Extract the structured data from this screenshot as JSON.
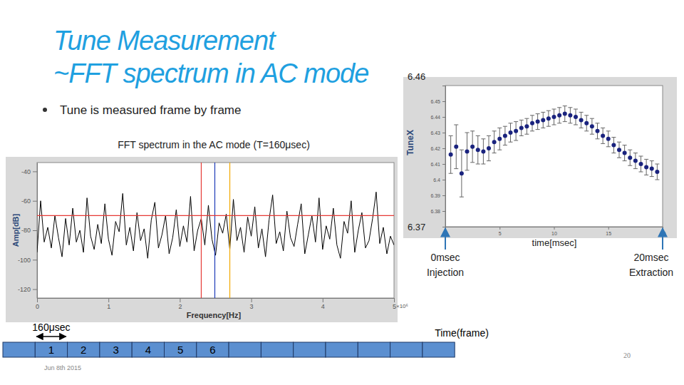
{
  "slide": {
    "title": [
      "Tune Measurement",
      "~FFT spectrum in AC mode"
    ],
    "bullet": "Tune is measured frame by frame",
    "frame_width": "160μsec",
    "frames": [
      1,
      2,
      3,
      4,
      5,
      6
    ],
    "time_axis_label": "Time(frame)",
    "date": "Jun 8th 2015",
    "page": 20
  },
  "chart_data": [
    {
      "type": "line",
      "title": "FFT spectrum in the AC mode (T=160μsec)",
      "x_label": "Frequency[Hz]",
      "y_label": "Amp[dB]",
      "x_exponent_label": "×10⁶",
      "x": [
        0,
        0.05,
        0.1,
        0.15,
        0.2,
        0.25,
        0.3,
        0.35,
        0.4,
        0.45,
        0.5,
        0.55,
        0.6,
        0.65,
        0.7,
        0.75,
        0.8,
        0.85,
        0.9,
        0.95,
        1,
        1.05,
        1.1,
        1.15,
        1.2,
        1.25,
        1.3,
        1.35,
        1.4,
        1.45,
        1.5,
        1.55,
        1.6,
        1.65,
        1.7,
        1.75,
        1.8,
        1.85,
        1.9,
        1.95,
        2,
        2.05,
        2.1,
        2.15,
        2.2,
        2.25,
        2.3,
        2.35,
        2.4,
        2.45,
        2.5,
        2.55,
        2.6,
        2.65,
        2.7,
        2.75,
        2.8,
        2.85,
        2.9,
        2.95,
        3,
        3.05,
        3.1,
        3.15,
        3.2,
        3.25,
        3.3,
        3.35,
        3.4,
        3.45,
        3.5,
        3.55,
        3.6,
        3.65,
        3.7,
        3.75,
        3.8,
        3.85,
        3.9,
        3.95,
        4,
        4.05,
        4.1,
        4.15,
        4.2,
        4.25,
        4.3,
        4.35,
        4.4,
        4.45,
        4.5,
        4.55,
        4.6,
        4.65,
        4.7,
        4.75,
        4.8,
        4.85,
        4.9,
        4.95,
        5
      ],
      "series": [
        {
          "color": "#000000",
          "values": [
            -95,
            -60,
            -88,
            -78,
            -92,
            -70,
            -85,
            -98,
            -72,
            -90,
            -65,
            -88,
            -80,
            -95,
            -58,
            -84,
            -93,
            -76,
            -89,
            -62,
            -86,
            -97,
            -74,
            -81,
            -55,
            -90,
            -78,
            -94,
            -68,
            -87,
            -79,
            -99,
            -73,
            -61,
            -92,
            -83,
            -70,
            -96,
            -85,
            -66,
            -91,
            -77,
            -88,
            -57,
            -94,
            -80,
            -72,
            -90,
            -63,
            -86,
            -97,
            -75,
            -82,
            -69,
            -93,
            -59,
            -87,
            -78,
            -95,
            -71,
            -84,
            -64,
            -92,
            -79,
            -98,
            -73,
            -56,
            -89,
            -81,
            -94,
            -67,
            -85,
            -91,
            -76,
            -62,
            -96,
            -83,
            -70,
            -88,
            -58,
            -93,
            -77,
            -86,
            -65,
            -90,
            -99,
            -74,
            -82,
            -60,
            -95,
            -80,
            -68,
            -92,
            -87,
            -72,
            -54,
            -89,
            -78,
            -96,
            -84,
            -90
          ]
        }
      ],
      "xlim": [
        0,
        5
      ],
      "xticks": [
        0,
        1,
        2,
        3,
        4,
        5
      ],
      "ylim": [
        -126,
        -34
      ],
      "yticks": [
        -120,
        -100,
        -80,
        -60,
        -40
      ],
      "grid": false,
      "reference_lines": [
        {
          "axis": "x",
          "value": 2.3,
          "color": "#e53935"
        },
        {
          "axis": "x",
          "value": 2.49,
          "color": "#1e3ab8"
        },
        {
          "axis": "x",
          "value": 2.7,
          "color": "#f2a900"
        },
        {
          "axis": "y",
          "value": -70,
          "color": "#e53935"
        }
      ]
    },
    {
      "type": "scatter",
      "x_label": "time[msec]",
      "y_label": "TuneX",
      "x": [
        0.5,
        1,
        1.5,
        2,
        2.5,
        3,
        3.5,
        4,
        4.5,
        5,
        5.5,
        6,
        6.5,
        7,
        7.5,
        8,
        8.5,
        9,
        9.5,
        10,
        10.5,
        11,
        11.5,
        12,
        12.5,
        13,
        13.5,
        14,
        14.5,
        15,
        15.5,
        16,
        16.5,
        17,
        17.5,
        18,
        18.5,
        19,
        19.5
      ],
      "series": [
        {
          "color": "#1a237e",
          "marker": "circle",
          "values": [
            6.416,
            6.421,
            6.404,
            6.418,
            6.421,
            6.419,
            6.418,
            6.42,
            6.424,
            6.426,
            6.428,
            6.43,
            6.431,
            6.433,
            6.434,
            6.436,
            6.437,
            6.438,
            6.439,
            6.44,
            6.441,
            6.442,
            6.441,
            6.44,
            6.438,
            6.436,
            6.434,
            6.431,
            6.428,
            6.426,
            6.422,
            6.419,
            6.417,
            6.414,
            6.412,
            6.41,
            6.408,
            6.407,
            6.405
          ],
          "errors": [
            0.012,
            0.014,
            0.015,
            0.012,
            0.01,
            0.009,
            0.008,
            0.008,
            0.007,
            0.007,
            0.006,
            0.006,
            0.006,
            0.005,
            0.005,
            0.005,
            0.005,
            0.005,
            0.005,
            0.005,
            0.005,
            0.005,
            0.005,
            0.005,
            0.005,
            0.005,
            0.005,
            0.005,
            0.005,
            0.005,
            0.005,
            0.005,
            0.005,
            0.005,
            0.005,
            0.005,
            0.005,
            0.005,
            0.005
          ]
        }
      ],
      "xlim": [
        0,
        20
      ],
      "xticks": [
        0,
        5,
        10,
        15,
        20
      ],
      "ylim": [
        6.37,
        6.46
      ],
      "yticks": [
        6.38,
        6.39,
        6.4,
        6.41,
        6.42,
        6.43,
        6.44,
        6.45
      ],
      "grid": false,
      "annotations": [
        {
          "x": 0,
          "lines": [
            "0msec",
            "Injection"
          ]
        },
        {
          "x": 20,
          "lines": [
            "20msec",
            "Extraction"
          ]
        }
      ]
    }
  ]
}
